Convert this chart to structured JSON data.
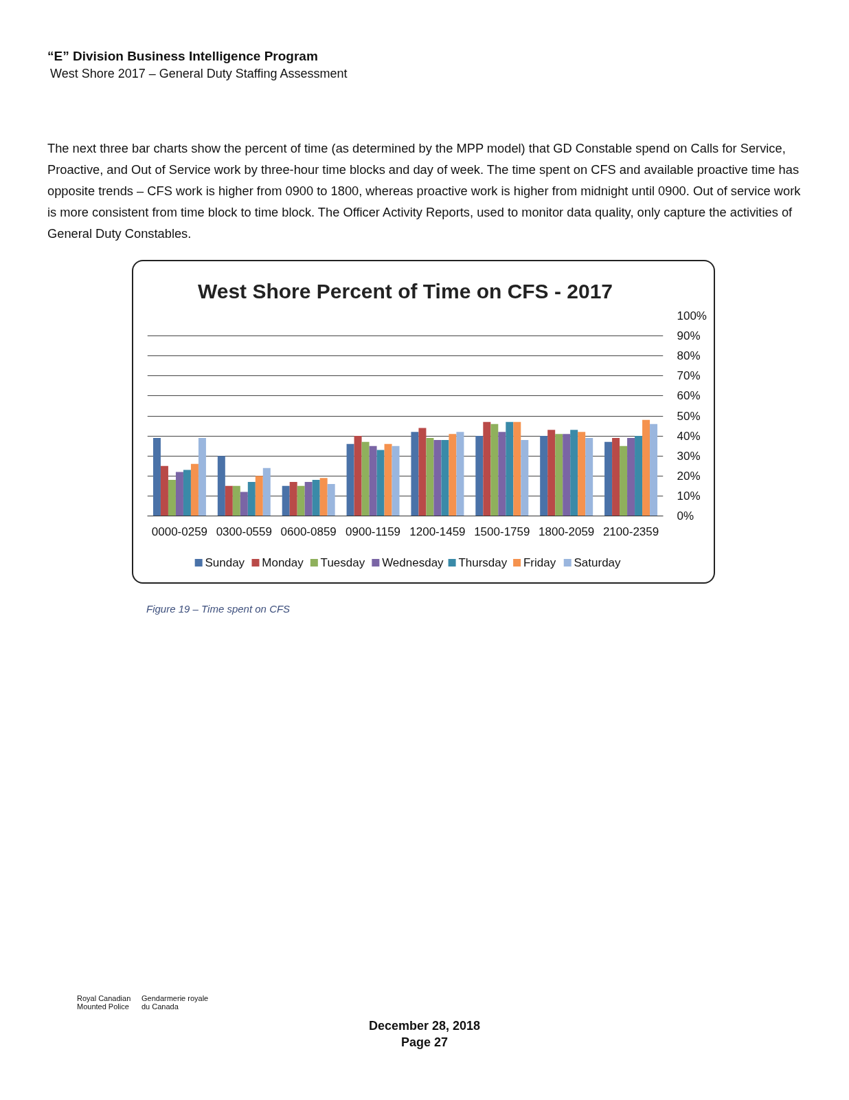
{
  "chart_data": {
    "type": "bar",
    "title": "West Shore Percent of Time on CFS - 2017",
    "categories": [
      "0000-0259",
      "0300-0559",
      "0600-0859",
      "0900-1159",
      "1200-1459",
      "1500-1759",
      "1800-2059",
      "2100-2359"
    ],
    "series": [
      {
        "name": "Sunday",
        "color": "#4a72a8",
        "values": [
          39,
          30,
          15,
          36,
          42,
          40,
          40,
          37
        ]
      },
      {
        "name": "Monday",
        "color": "#b94a48",
        "values": [
          25,
          15,
          17,
          40,
          44,
          47,
          43,
          39
        ]
      },
      {
        "name": "Tuesday",
        "color": "#8fb05c",
        "values": [
          18,
          15,
          15,
          37,
          39,
          46,
          41,
          35
        ]
      },
      {
        "name": "Wednesday",
        "color": "#7a65a5",
        "values": [
          22,
          12,
          17,
          35,
          38,
          42,
          41,
          39
        ]
      },
      {
        "name": "Thursday",
        "color": "#3a8aa8",
        "values": [
          23,
          17,
          18,
          33,
          38,
          47,
          43,
          40
        ]
      },
      {
        "name": "Friday",
        "color": "#f5924e",
        "values": [
          26,
          20,
          19,
          36,
          41,
          47,
          42,
          48
        ]
      },
      {
        "name": "Saturday",
        "color": "#9ab6de",
        "values": [
          39,
          24,
          16,
          35,
          42,
          38,
          39,
          46
        ]
      }
    ],
    "ylim": [
      0,
      100
    ],
    "yticks": [
      {
        "value": 0,
        "label": "0%"
      },
      {
        "value": 10,
        "label": "10%"
      },
      {
        "value": 20,
        "label": "20%"
      },
      {
        "value": 30,
        "label": "30%"
      },
      {
        "value": 40,
        "label": "40%"
      },
      {
        "value": 50,
        "label": "50%"
      },
      {
        "value": 60,
        "label": "60%"
      },
      {
        "value": 70,
        "label": "70%"
      },
      {
        "value": 80,
        "label": "80%"
      },
      {
        "value": 90,
        "label": "90%"
      },
      {
        "value": 100,
        "label": "100%"
      }
    ],
    "grid": "y",
    "legend": "bottom",
    "annotations": [
      "“E” Division Business Intelligence Program",
      "West Shore 2017 – General Duty Staffing Assessment",
      "The next three bar charts show the percent of time (as determined by the MPP model) that GD Constable spend on Calls for Service, Proactive, and Out of Service work by three-hour time blocks and day of week. The time spent on CFS and available proactive time has opposite trends – CFS work is higher from 0900 to 1800, whereas proactive work is higher from midnight until 0900. Out of service work is more consistent from time block to time block. The Officer Activity Reports, used to monitor data quality, only capture the activities of General Duty Constables.",
      "Figure 19 – Time spent on CFS",
      "Royal Canadian Mounted Police",
      "Gendarmerie royale du Canada",
      "December 28, 2018",
      "Page 27"
    ]
  }
}
